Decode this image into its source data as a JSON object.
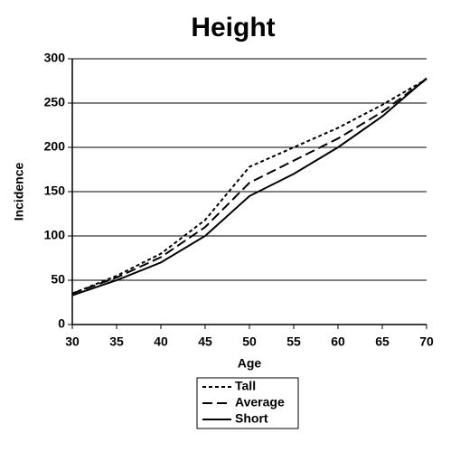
{
  "chart_data": {
    "type": "line",
    "title": "Height",
    "x_label": "Age",
    "y_label": "Incidence",
    "x": [
      30,
      35,
      40,
      45,
      50,
      55,
      60,
      65,
      70
    ],
    "series": [
      {
        "name": "Tall",
        "color": "#000000",
        "dash": "4,3",
        "values": [
          35,
          55,
          80,
          118,
          178,
          200,
          222,
          248,
          277
        ]
      },
      {
        "name": "Average",
        "color": "#000000",
        "dash": "11,5",
        "values": [
          35,
          53,
          76,
          110,
          160,
          185,
          210,
          240,
          277
        ]
      },
      {
        "name": "Short",
        "color": "#000000",
        "dash": "none",
        "values": [
          33,
          50,
          70,
          100,
          145,
          170,
          200,
          235,
          278
        ]
      }
    ],
    "xlim": [
      30,
      70
    ],
    "xticks": [
      30,
      35,
      40,
      45,
      50,
      55,
      60,
      65,
      70
    ],
    "ylim": [
      0,
      300
    ],
    "yticks": [
      0,
      50,
      100,
      150,
      200,
      250,
      300
    ],
    "grid": true,
    "legend": "bottom"
  }
}
